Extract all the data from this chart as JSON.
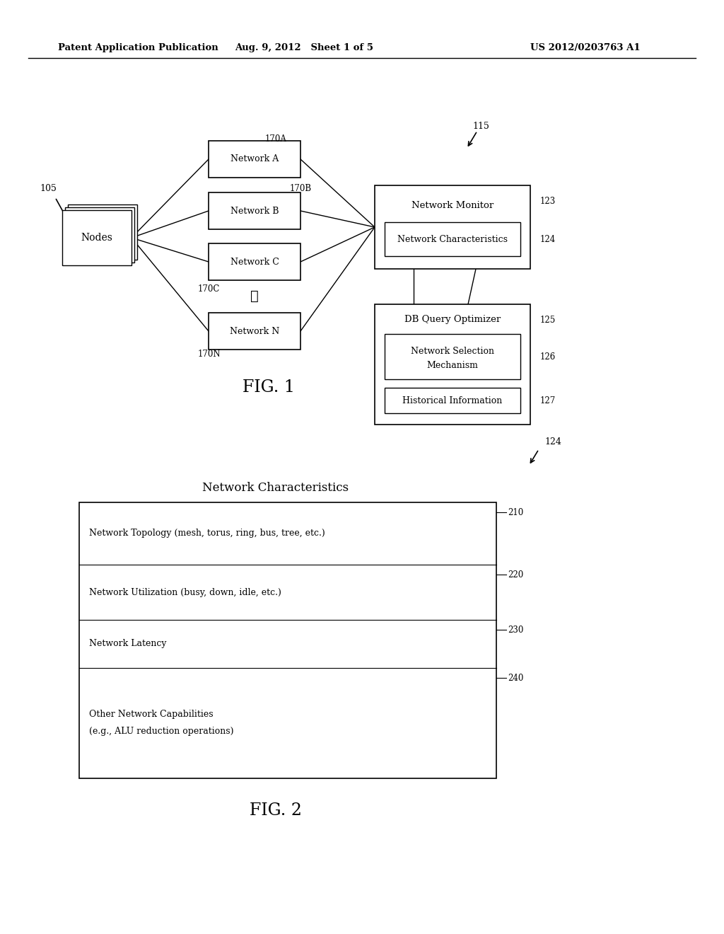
{
  "bg_color": "#ffffff",
  "header_left": "Patent Application Publication",
  "header_mid": "Aug. 9, 2012   Sheet 1 of 5",
  "header_right": "US 2012/0203763 A1",
  "fig1_label": "FIG. 1",
  "fig2_label": "FIG. 2",
  "label_105": "105",
  "label_115": "115",
  "label_124_fig2": "124",
  "nc_title": "Network Characteristics",
  "nc_rows": [
    {
      "label": "Network Topology (mesh, torus, ring, bus, tree, etc.)",
      "tag": "210"
    },
    {
      "label": "Network Utilization (busy, down, idle, etc.)",
      "tag": "220"
    },
    {
      "label": "Network Latency",
      "tag": "230"
    },
    {
      "label": "Other Network Capabilities\n(e.g., ALU reduction operations)",
      "tag": "240"
    }
  ]
}
